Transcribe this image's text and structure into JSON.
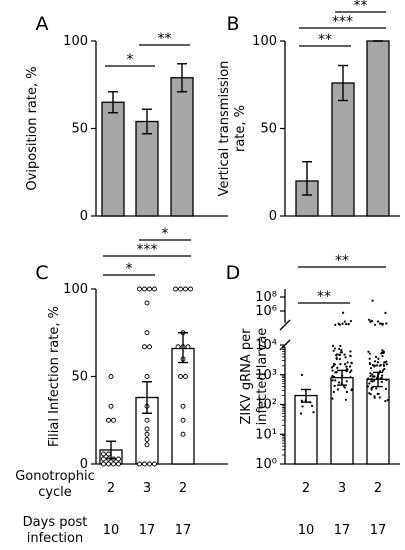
{
  "chart_data": [
    {
      "panel": "A",
      "type": "bar",
      "ylabel": "Oviposition rate, %",
      "ylim": [
        0,
        100
      ],
      "yticks": [
        0,
        50,
        100
      ],
      "groups": 3,
      "values": [
        65,
        54,
        79
      ],
      "err_low": [
        59,
        47,
        71
      ],
      "err_high": [
        71,
        61,
        87
      ],
      "bar_color": "#a6a6a6",
      "significance": [
        {
          "from": 0,
          "to": 1,
          "label": "*"
        },
        {
          "from": 1,
          "to": 2,
          "label": "**"
        }
      ]
    },
    {
      "panel": "B",
      "type": "bar",
      "ylabel": "Vertical transmission rate, %",
      "ylabel_lines": [
        "Vertical transmission",
        "rate, %"
      ],
      "ylim": [
        0,
        100
      ],
      "yticks": [
        0,
        50,
        100
      ],
      "groups": 3,
      "values": [
        20,
        76,
        100
      ],
      "err_low": [
        12,
        66,
        100
      ],
      "err_high": [
        31,
        86,
        100
      ],
      "bar_color": "#a6a6a6",
      "significance": [
        {
          "from": 0,
          "to": 1,
          "label": "**"
        },
        {
          "from": 0,
          "to": 2,
          "label": "***"
        },
        {
          "from": 1,
          "to": 2,
          "label": "**"
        }
      ]
    },
    {
      "panel": "C",
      "type": "bar",
      "ylabel": "Filial Infection rate, %",
      "ylim": [
        0,
        100
      ],
      "yticks": [
        0,
        50,
        100
      ],
      "groups": 3,
      "values": [
        8,
        38,
        66
      ],
      "err_low": [
        3,
        29,
        58
      ],
      "err_high": [
        13,
        47,
        75
      ],
      "bar_color": "#ffffff",
      "points": [
        [
          0,
          0,
          0,
          0,
          0,
          0,
          0,
          0,
          0,
          0,
          25,
          25,
          33,
          50
        ],
        [
          100,
          100,
          100,
          100,
          92,
          75,
          67,
          67,
          50,
          33,
          25,
          20,
          17,
          14,
          11,
          0,
          0,
          0,
          0
        ],
        [
          100,
          100,
          100,
          100,
          75,
          67,
          67,
          67,
          60,
          50,
          50,
          33,
          25,
          17
        ]
      ],
      "significance": [
        {
          "from": 0,
          "to": 1,
          "label": "*"
        },
        {
          "from": 0,
          "to": 2,
          "label": "***"
        },
        {
          "from": 1,
          "to": 2,
          "label": "*"
        }
      ]
    },
    {
      "panel": "D",
      "type": "bar",
      "scale": "log",
      "ylabel": "ZIKV gRNA per infected larvae",
      "ylabel_lines": [
        "ZIKV gRNA per",
        "infected larvae"
      ],
      "yticks": [
        {
          "value": 1,
          "label": "10⁰"
        },
        {
          "value": 10,
          "label": "10¹"
        },
        {
          "value": 100,
          "label": "10²"
        },
        {
          "value": 1000,
          "label": "10³"
        },
        {
          "value": 10000,
          "label": "10⁴"
        },
        {
          "value": 1000000,
          "label": "10⁶"
        },
        {
          "value": 100000000,
          "label": "10⁸"
        }
      ],
      "axis_break": true,
      "groups": 3,
      "values": [
        200,
        800,
        700
      ],
      "err_low": [
        120,
        450,
        400
      ],
      "err_high": [
        320,
        1400,
        1200
      ],
      "bar_color": "#ffffff",
      "points_count": [
        8,
        70,
        80
      ],
      "significance": [
        {
          "from": 0,
          "to": 1,
          "label": "**"
        },
        {
          "from": 0,
          "to": 2,
          "label": "**"
        }
      ]
    }
  ],
  "footer": {
    "row1_label_lines": [
      "Gonotrophic",
      "cycle"
    ],
    "row1_values": [
      "2",
      "3",
      "2"
    ],
    "row2_label_lines": [
      "Days post",
      "infection"
    ],
    "row2_values": [
      "10",
      "17",
      "17"
    ]
  }
}
